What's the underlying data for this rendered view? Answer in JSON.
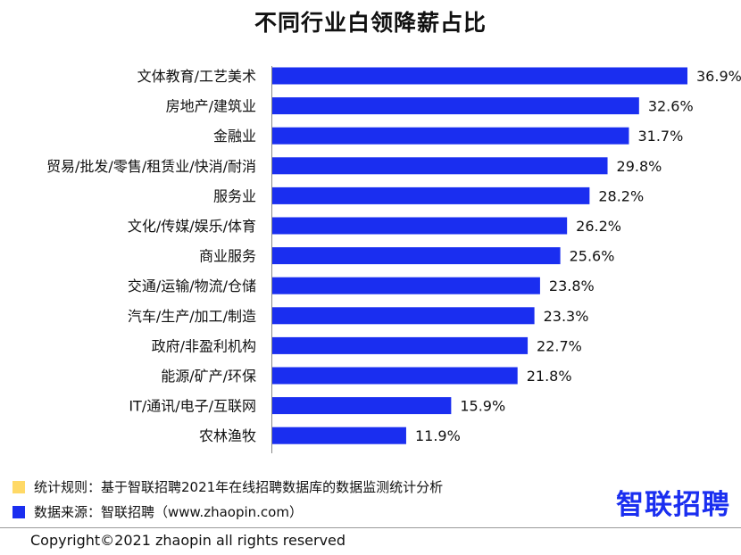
{
  "title": "不同行业白领降薪占比",
  "chart_data": {
    "type": "bar",
    "orientation": "horizontal",
    "title": "不同行业白领降薪占比",
    "categories": [
      "文体教育/工艺美术",
      "房地产/建筑业",
      "金融业",
      "贸易/批发/零售/租赁业/快消/耐消",
      "服务业",
      "文化/传媒/娱乐/体育",
      "商业服务",
      "交通/运输/物流/仓储",
      "汽车/生产/加工/制造",
      "政府/非盈利机构",
      "能源/矿产/环保",
      "IT/通讯/电子/互联网",
      "农林渔牧"
    ],
    "values": [
      36.9,
      32.6,
      31.7,
      29.8,
      28.2,
      26.2,
      25.6,
      23.8,
      23.3,
      22.7,
      21.8,
      15.9,
      11.9
    ],
    "value_labels": [
      "36.9%",
      "32.6%",
      "31.7%",
      "29.8%",
      "28.2%",
      "26.2%",
      "25.6%",
      "23.8%",
      "23.3%",
      "22.7%",
      "21.8%",
      "15.9%",
      "11.9%"
    ],
    "xlim": [
      0,
      36.9
    ],
    "grid": false,
    "bar_color": "#1a2ef0"
  },
  "notes": {
    "rule_text": "统计规则：基于智联招聘2021年在线招聘数据库的数据监测统计分析",
    "rule_color": "#ffd966",
    "source_text": "数据来源：智联招聘（www.zhaopin.com）",
    "source_color": "#1a2ef0"
  },
  "brand": {
    "logo_text": "智联招聘",
    "color": "#1a2ef0"
  },
  "copyright": "Copyright©2021 zhaopin all rights reserved"
}
